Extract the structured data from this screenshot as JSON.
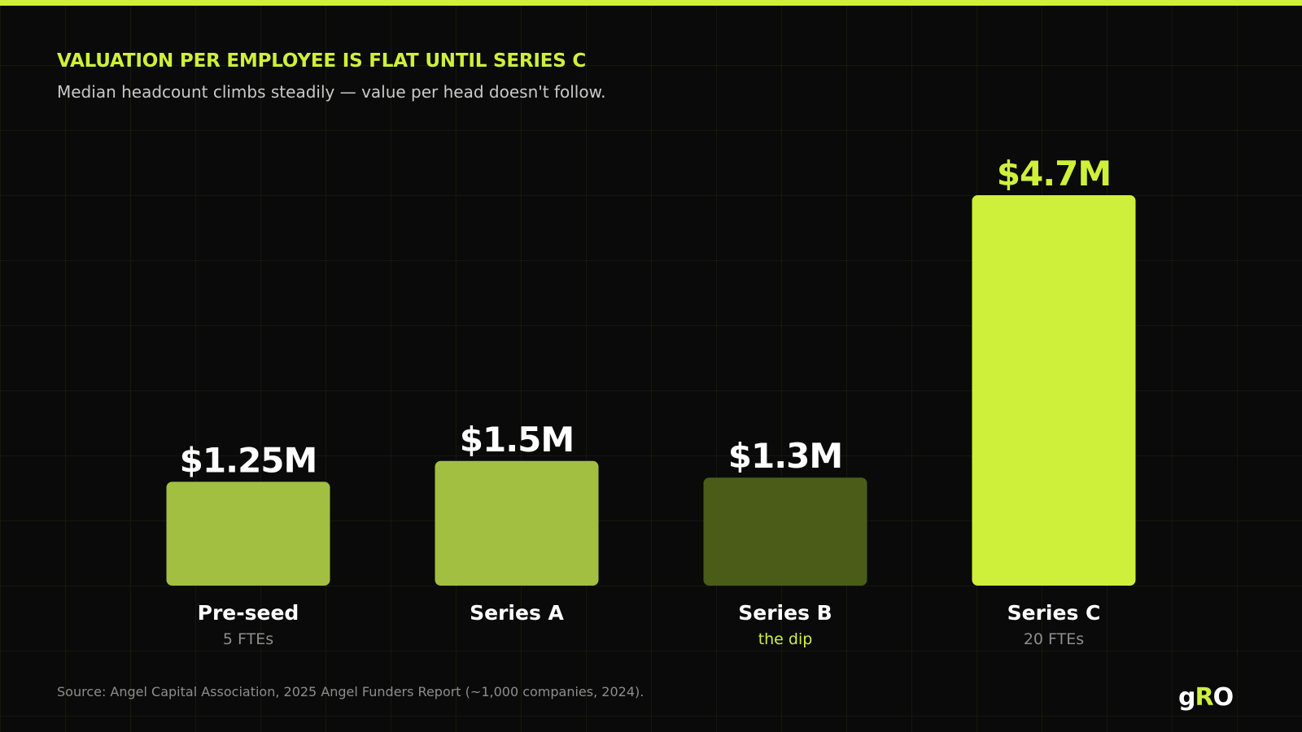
{
  "header": {
    "title": "VALUATION PER EMPLOYEE IS FLAT UNTIL SERIES C",
    "subtitle": "Median headcount climbs steadily — value per head doesn't follow."
  },
  "footer": {
    "source": "Source: Angel Capital Association, 2025 Angel Funders Report (~1,000 companies, 2024).",
    "logo_text": "gRO"
  },
  "colors": {
    "background": "#0a0a0a",
    "accent": "#cef03a",
    "bar_mid": "#a3bf42",
    "bar_dip": "#4b5c18",
    "grid": "#1b2310"
  },
  "chart_data": {
    "type": "bar",
    "title": "VALUATION PER EMPLOYEE IS FLAT UNTIL SERIES C",
    "subtitle": "Median headcount climbs steadily — value per head doesn't follow.",
    "categories": [
      "Pre-seed",
      "Series A",
      "Series B",
      "Series C"
    ],
    "sublabels": [
      "5 FTEs",
      "",
      "the dip",
      "20 FTEs"
    ],
    "values": [
      1.25,
      1.5,
      1.3,
      4.7
    ],
    "value_labels": [
      "$1.25M",
      "$1.5M",
      "$1.3M",
      "$4.7M"
    ],
    "bar_colors": [
      "#a3bf42",
      "#a3bf42",
      "#4b5c18",
      "#cef03a"
    ],
    "highlight_sublabel": [
      false,
      false,
      true,
      false
    ],
    "highlight_value": [
      false,
      false,
      false,
      true
    ],
    "unit": "$M",
    "ylim": [
      0,
      4.7
    ],
    "grid": true,
    "legend": "none"
  }
}
